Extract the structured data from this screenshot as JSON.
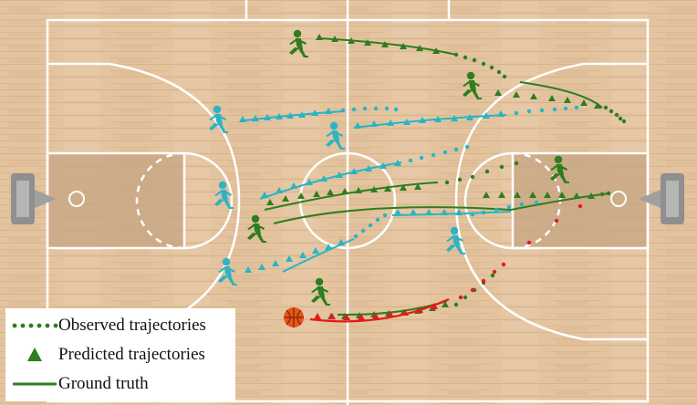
{
  "legend": {
    "items": [
      {
        "label": "Observed trajectories",
        "symbol": "dotted-line"
      },
      {
        "label": "Predicted trajectories",
        "symbol": "triangle"
      },
      {
        "label": "Ground truth",
        "symbol": "solid-line"
      }
    ]
  },
  "colors": {
    "team_green": "#2e7d1f",
    "team_cyan": "#26b5c6",
    "ball_red": "#e21b1b",
    "court_wood": "#e2c39d",
    "court_lines": "#ffffff",
    "paint": "#c9a98a"
  },
  "icons": {
    "green_player": "running-player-icon",
    "cyan_player": "running-player-icon",
    "ball": "basketball-icon",
    "hoop": "backboard-icon"
  }
}
